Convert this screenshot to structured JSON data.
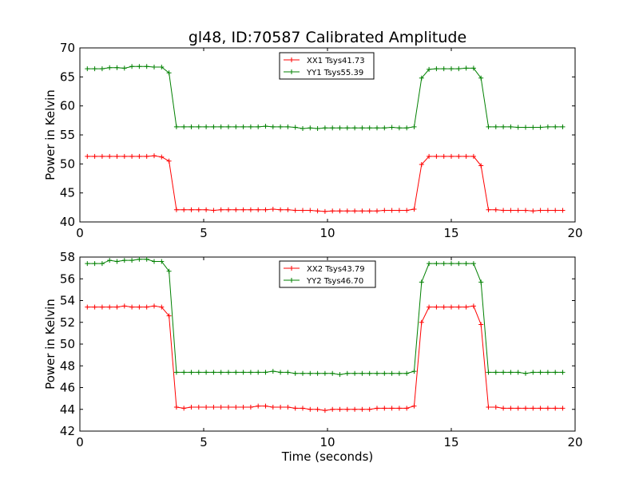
{
  "title": "gl48, ID:70587 Calibrated Amplitude",
  "chart_data": [
    {
      "type": "line",
      "title": "gl48, ID:70587 Calibrated Amplitude",
      "xlabel": "",
      "ylabel": "Power in Kelvin",
      "xlim": [
        0,
        20
      ],
      "ylim": [
        40,
        70
      ],
      "xticks": [
        0,
        5,
        10,
        15,
        20
      ],
      "yticks": [
        40,
        45,
        50,
        55,
        60,
        65,
        70
      ],
      "legend_position": "top-center",
      "x": [
        0.3,
        0.6,
        0.9,
        1.2,
        1.5,
        1.8,
        2.1,
        2.4,
        2.7,
        3.0,
        3.3,
        3.6,
        3.9,
        4.2,
        4.5,
        4.8,
        5.1,
        5.4,
        5.7,
        6.0,
        6.3,
        6.6,
        6.9,
        7.2,
        7.5,
        7.8,
        8.1,
        8.4,
        8.7,
        9.0,
        9.3,
        9.6,
        9.9,
        10.2,
        10.5,
        10.8,
        11.1,
        11.4,
        11.7,
        12.0,
        12.3,
        12.6,
        12.9,
        13.2,
        13.5,
        13.8,
        14.1,
        14.4,
        14.7,
        15.0,
        15.3,
        15.6,
        15.9,
        16.2,
        16.5,
        16.8,
        17.1,
        17.4,
        17.7,
        18.0,
        18.3,
        18.6,
        18.9,
        19.2,
        19.5
      ],
      "series": [
        {
          "name": "XX1 Tsys41.73",
          "color": "#ff0000",
          "values": [
            51.3,
            51.3,
            51.3,
            51.3,
            51.3,
            51.3,
            51.3,
            51.3,
            51.3,
            51.4,
            51.2,
            50.5,
            42.1,
            42.1,
            42.1,
            42.1,
            42.1,
            42.0,
            42.1,
            42.1,
            42.1,
            42.1,
            42.1,
            42.1,
            42.1,
            42.2,
            42.1,
            42.1,
            42.0,
            42.0,
            42.0,
            41.9,
            41.8,
            41.9,
            41.9,
            41.9,
            41.9,
            41.9,
            41.9,
            41.9,
            42.0,
            42.0,
            42.0,
            42.0,
            42.2,
            49.9,
            51.3,
            51.3,
            51.3,
            51.3,
            51.3,
            51.3,
            51.3,
            49.7,
            42.1,
            42.1,
            42.0,
            42.0,
            42.0,
            42.0,
            41.9,
            42.0,
            42.0,
            42.0,
            42.0
          ]
        },
        {
          "name": "YY1 Tsys55.39",
          "color": "#008000",
          "values": [
            66.4,
            66.4,
            66.4,
            66.6,
            66.6,
            66.5,
            66.8,
            66.8,
            66.8,
            66.7,
            66.7,
            65.7,
            56.4,
            56.4,
            56.4,
            56.4,
            56.4,
            56.4,
            56.4,
            56.4,
            56.4,
            56.4,
            56.4,
            56.4,
            56.5,
            56.4,
            56.4,
            56.4,
            56.3,
            56.1,
            56.2,
            56.1,
            56.2,
            56.2,
            56.2,
            56.2,
            56.2,
            56.2,
            56.2,
            56.2,
            56.2,
            56.3,
            56.2,
            56.2,
            56.4,
            64.8,
            66.3,
            66.4,
            66.4,
            66.4,
            66.4,
            66.5,
            66.5,
            64.8,
            56.4,
            56.4,
            56.4,
            56.4,
            56.3,
            56.3,
            56.3,
            56.3,
            56.4,
            56.4,
            56.4
          ]
        }
      ]
    },
    {
      "type": "line",
      "title": "",
      "xlabel": "Time (seconds)",
      "ylabel": "Power in Kelvin",
      "xlim": [
        0,
        20
      ],
      "ylim": [
        42,
        58
      ],
      "xticks": [
        0,
        5,
        10,
        15,
        20
      ],
      "yticks": [
        42,
        44,
        46,
        48,
        50,
        52,
        54,
        56,
        58
      ],
      "legend_position": "top-center",
      "x": [
        0.3,
        0.6,
        0.9,
        1.2,
        1.5,
        1.8,
        2.1,
        2.4,
        2.7,
        3.0,
        3.3,
        3.6,
        3.9,
        4.2,
        4.5,
        4.8,
        5.1,
        5.4,
        5.7,
        6.0,
        6.3,
        6.6,
        6.9,
        7.2,
        7.5,
        7.8,
        8.1,
        8.4,
        8.7,
        9.0,
        9.3,
        9.6,
        9.9,
        10.2,
        10.5,
        10.8,
        11.1,
        11.4,
        11.7,
        12.0,
        12.3,
        12.6,
        12.9,
        13.2,
        13.5,
        13.8,
        14.1,
        14.4,
        14.7,
        15.0,
        15.3,
        15.6,
        15.9,
        16.2,
        16.5,
        16.8,
        17.1,
        17.4,
        17.7,
        18.0,
        18.3,
        18.6,
        18.9,
        19.2,
        19.5
      ],
      "series": [
        {
          "name": "XX2 Tsys43.79",
          "color": "#ff0000",
          "values": [
            53.4,
            53.4,
            53.4,
            53.4,
            53.4,
            53.5,
            53.4,
            53.4,
            53.4,
            53.5,
            53.4,
            52.6,
            44.2,
            44.1,
            44.2,
            44.2,
            44.2,
            44.2,
            44.2,
            44.2,
            44.2,
            44.2,
            44.2,
            44.3,
            44.3,
            44.2,
            44.2,
            44.2,
            44.1,
            44.1,
            44.0,
            44.0,
            43.9,
            44.0,
            44.0,
            44.0,
            44.0,
            44.0,
            44.0,
            44.1,
            44.1,
            44.1,
            44.1,
            44.1,
            44.3,
            52.0,
            53.4,
            53.4,
            53.4,
            53.4,
            53.4,
            53.4,
            53.5,
            51.8,
            44.2,
            44.2,
            44.1,
            44.1,
            44.1,
            44.1,
            44.1,
            44.1,
            44.1,
            44.1,
            44.1
          ]
        },
        {
          "name": "YY2 Tsys46.70",
          "color": "#008000",
          "values": [
            57.4,
            57.4,
            57.4,
            57.7,
            57.6,
            57.7,
            57.7,
            57.8,
            57.8,
            57.6,
            57.6,
            56.7,
            47.4,
            47.4,
            47.4,
            47.4,
            47.4,
            47.4,
            47.4,
            47.4,
            47.4,
            47.4,
            47.4,
            47.4,
            47.4,
            47.5,
            47.4,
            47.4,
            47.3,
            47.3,
            47.3,
            47.3,
            47.3,
            47.3,
            47.2,
            47.3,
            47.3,
            47.3,
            47.3,
            47.3,
            47.3,
            47.3,
            47.3,
            47.3,
            47.5,
            55.7,
            57.4,
            57.4,
            57.4,
            57.4,
            57.4,
            57.4,
            57.4,
            55.7,
            47.4,
            47.4,
            47.4,
            47.4,
            47.4,
            47.3,
            47.4,
            47.4,
            47.4,
            47.4,
            47.4
          ]
        }
      ]
    }
  ]
}
